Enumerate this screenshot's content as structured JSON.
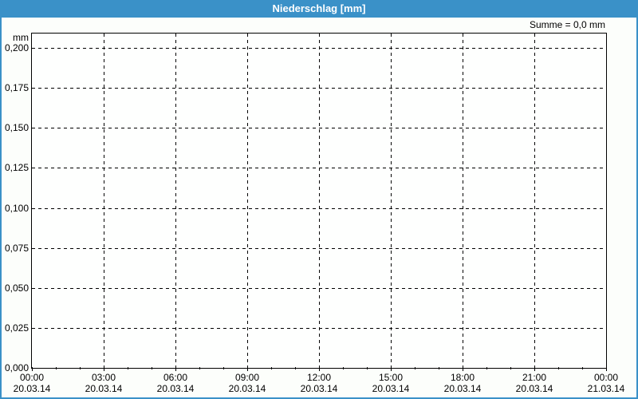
{
  "header": {
    "title": "Niederschlag [mm]",
    "sum_label": "Summe = 0,0 mm"
  },
  "colors": {
    "titlebar_bg": "#3A91C8",
    "frame_border": "#3A91C8",
    "page_background": "#FCFEFB",
    "plot_background": "#FEFFFE",
    "grid": "#000000",
    "text": "#000000",
    "title_text": "#FFFFFF"
  },
  "chart_data": {
    "type": "bar",
    "title": "Niederschlag [mm]",
    "xlabel": "",
    "ylabel": "mm",
    "ylim": [
      0,
      0.209
    ],
    "xlim_hours": [
      0,
      24
    ],
    "grid_style": "dashed",
    "legend": "none",
    "y_ticks": [
      {
        "value": 0.0,
        "label": "0,000"
      },
      {
        "value": 0.025,
        "label": "0,025"
      },
      {
        "value": 0.05,
        "label": "0,050"
      },
      {
        "value": 0.075,
        "label": "0,075"
      },
      {
        "value": 0.1,
        "label": "0,100"
      },
      {
        "value": 0.125,
        "label": "0,125"
      },
      {
        "value": 0.15,
        "label": "0,150"
      },
      {
        "value": 0.175,
        "label": "0,175"
      },
      {
        "value": 0.2,
        "label": "0,200"
      }
    ],
    "x_ticks": [
      {
        "hour": 0,
        "time": "00:00",
        "date": "20.03.14"
      },
      {
        "hour": 3,
        "time": "03:00",
        "date": "20.03.14"
      },
      {
        "hour": 6,
        "time": "06:00",
        "date": "20.03.14"
      },
      {
        "hour": 9,
        "time": "09:00",
        "date": "20.03.14"
      },
      {
        "hour": 12,
        "time": "12:00",
        "date": "20.03.14"
      },
      {
        "hour": 15,
        "time": "15:00",
        "date": "20.03.14"
      },
      {
        "hour": 18,
        "time": "18:00",
        "date": "20.03.14"
      },
      {
        "hour": 21,
        "time": "21:00",
        "date": "20.03.14"
      },
      {
        "hour": 24,
        "time": "00:00",
        "date": "21.03.14"
      }
    ],
    "x_minor_tick_interval_hours": 1,
    "series": [
      {
        "name": "Niederschlag",
        "values": [],
        "sum_mm": 0.0
      }
    ],
    "annotations": [
      "Summe = 0,0 mm"
    ]
  }
}
